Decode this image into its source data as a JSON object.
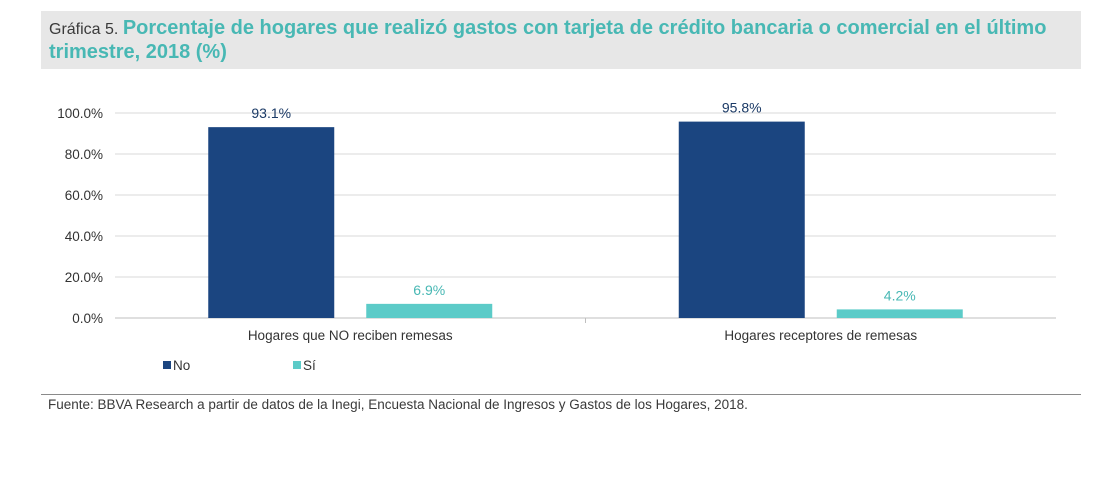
{
  "figure": {
    "label": "Gráfica 5.",
    "title": "Porcentaje de hogares que realizó gastos con tarjeta de crédito bancaria o comercial en el último trimestre, 2018 (%)"
  },
  "source": "Fuente: BBVA Research a partir de datos de la Inegi, Encuesta Nacional de Ingresos y Gastos de los Hogares, 2018.",
  "chart_data": {
    "type": "bar",
    "categories": [
      "Hogares que NO reciben remesas",
      "Hogares receptores de remesas"
    ],
    "series": [
      {
        "name": "No",
        "color": "#1b4580",
        "values": [
          93.1,
          95.8
        ],
        "labels": [
          "93.1%",
          "95.8%"
        ]
      },
      {
        "name": "Sí",
        "color": "#5ccbc8",
        "values": [
          6.9,
          4.2
        ],
        "labels": [
          "6.9%",
          "4.2%"
        ]
      }
    ],
    "ylim": [
      0,
      100
    ],
    "yticks": [
      0,
      20,
      40,
      60,
      80,
      100
    ],
    "ytick_labels": [
      "0.0%",
      "20.0%",
      "40.0%",
      "60.0%",
      "80.0%",
      "100.0%"
    ],
    "grid": true,
    "legend": "bottom-left",
    "label_colors": {
      "No": "#1b3a66",
      "Sí": "#48b8b4"
    }
  }
}
